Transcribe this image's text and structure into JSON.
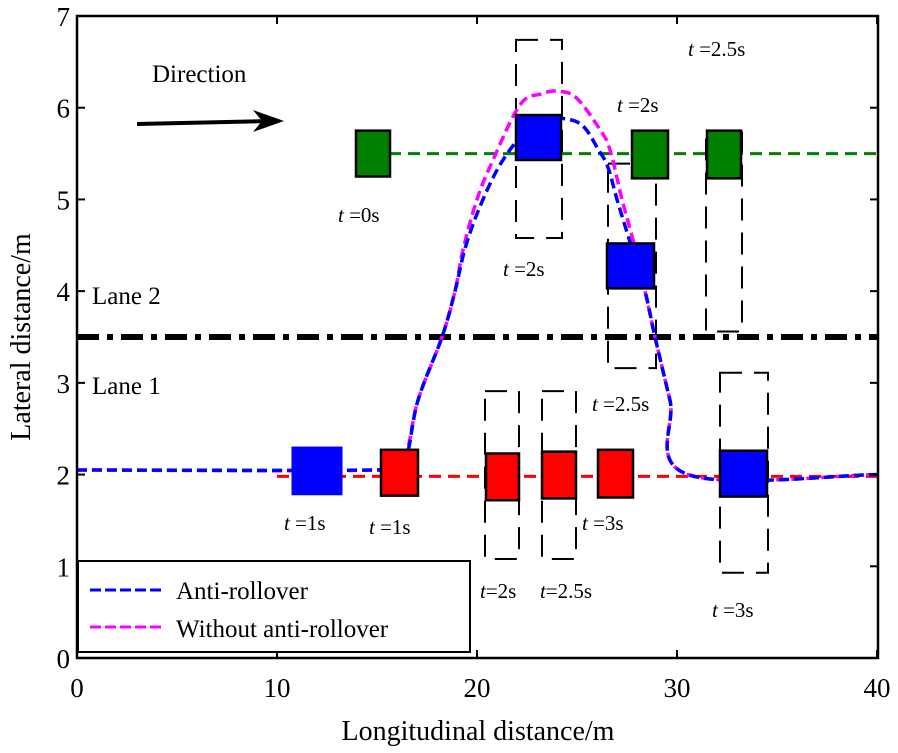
{
  "chart_data": {
    "type": "line",
    "title": "",
    "xlabel": "Longitudinal distance/m",
    "ylabel": "Lateral distance/m",
    "xlim": [
      0,
      40
    ],
    "ylim": [
      0,
      7
    ],
    "xticks": [
      "0",
      "10",
      "20",
      "30",
      "40"
    ],
    "yticks": [
      "0",
      "1",
      "2",
      "3",
      "4",
      "5",
      "6",
      "7"
    ],
    "grid": false,
    "legend": {
      "placement": "bottom-left",
      "entries": [
        "Anti-rollover",
        "Without anti-rollover"
      ]
    },
    "colors": {
      "anti": "#0000ff",
      "without": "#ff00ff",
      "green_vehicle": "#008000",
      "red_vehicle": "#ff0000",
      "lane": "#000000"
    },
    "series": [
      {
        "name": "Anti-rollover",
        "color": "#0000ff",
        "x": [
          0,
          14.9,
          16.3,
          17.05,
          18.25,
          18.9,
          19.45,
          20.3,
          21.3,
          22.5,
          23.5,
          24.4,
          25.3,
          26.05,
          26.55,
          27.0,
          27.7,
          28.4,
          28.9,
          29.65,
          30.55,
          40
        ],
        "y": [
          2.05,
          2.05,
          2.1,
          2.81,
          3.5,
          4.0,
          4.5,
          5.0,
          5.43,
          5.75,
          5.86,
          5.88,
          5.8,
          5.55,
          5.35,
          5.0,
          4.5,
          4.0,
          3.5,
          2.81,
          2.0,
          2.0
        ]
      },
      {
        "name": "Without anti-rollover",
        "color": "#ff00ff",
        "x": [
          0,
          14.9,
          16.3,
          17.05,
          18.25,
          18.9,
          19.3,
          20.0,
          20.8,
          22.15,
          23.2,
          24.1,
          25.0,
          26.15,
          26.65,
          27.25,
          27.8,
          28.4,
          28.9,
          29.65,
          30.55,
          40
        ],
        "y": [
          2.05,
          2.05,
          2.15,
          2.81,
          3.5,
          4.0,
          4.45,
          5.0,
          5.43,
          6.03,
          6.15,
          6.18,
          6.1,
          5.76,
          5.54,
          5.0,
          4.56,
          4.0,
          3.5,
          2.81,
          2.0,
          2.0
        ]
      }
    ],
    "reference_lines": [
      {
        "name": "lane-divider",
        "y": 3.5,
        "style": "dash-dot",
        "color": "#000000"
      },
      {
        "name": "green-vehicle-path",
        "y": 5.5,
        "x_from": 15.6,
        "x_to": 40,
        "style": "dashed",
        "color": "#008000"
      },
      {
        "name": "red-vehicle-path",
        "y": 1.98,
        "x_from": 10,
        "x_to": 40,
        "style": "dashed",
        "color": "#ff0000"
      }
    ],
    "vehicles": [
      {
        "name": "green-t0",
        "color": "#008000",
        "x": [
          13.95,
          15.65
        ],
        "y": [
          5.25,
          5.75
        ],
        "label": "t =0s",
        "outline": null
      },
      {
        "name": "green-t2",
        "color": "#008000",
        "x": [
          27.75,
          29.55
        ],
        "y": [
          5.23,
          5.75
        ],
        "label": "t =2s",
        "outline": null
      },
      {
        "name": "green-t2.5",
        "color": "#008000",
        "x": [
          31.5,
          33.2
        ],
        "y": [
          5.23,
          5.75
        ],
        "label": "t =2.5s",
        "outline": {
          "x": [
            31.45,
            33.25
          ],
          "y": [
            3.56,
            5.73
          ]
        }
      },
      {
        "name": "blue-t1",
        "color": "#0000ff",
        "x": [
          10.75,
          13.25
        ],
        "y": [
          1.78,
          2.3
        ],
        "label": "t =1s",
        "outline": null,
        "border": "#0000ff"
      },
      {
        "name": "blue-t2",
        "color": "#0000ff",
        "x": [
          21.95,
          24.2
        ],
        "y": [
          5.43,
          5.92
        ],
        "label": "t =2s",
        "outline": {
          "x": [
            21.95,
            24.25
          ],
          "y": [
            4.58,
            6.74
          ]
        }
      },
      {
        "name": "blue-t2.5",
        "color": "#0000ff",
        "x": [
          26.5,
          28.85
        ],
        "y": [
          4.03,
          4.52
        ],
        "label": "t =2.5s",
        "outline": {
          "x": [
            26.55,
            28.95
          ],
          "y": [
            3.16,
            5.39
          ]
        }
      },
      {
        "name": "blue-t3",
        "color": "#0000ff",
        "x": [
          32.15,
          34.5
        ],
        "y": [
          1.76,
          2.26
        ],
        "label": "t =3s",
        "outline": {
          "x": [
            32.15,
            34.55
          ],
          "y": [
            0.93,
            3.11
          ]
        }
      },
      {
        "name": "red-t1",
        "color": "#ff0000",
        "x": [
          15.2,
          17.05
        ],
        "y": [
          1.77,
          2.27
        ],
        "label": "t =1s",
        "outline": null
      },
      {
        "name": "red-t2",
        "color": "#ff0000",
        "x": [
          20.45,
          22.1
        ],
        "y": [
          1.72,
          2.23
        ],
        "label": "t=2s",
        "outline": {
          "x": [
            20.4,
            22.1
          ],
          "y": [
            1.08,
            2.91
          ]
        }
      },
      {
        "name": "red-t2.5",
        "color": "#ff0000",
        "x": [
          23.25,
          24.95
        ],
        "y": [
          1.74,
          2.25
        ],
        "label": "t =2.5s",
        "outline": {
          "x": [
            23.25,
            24.95
          ],
          "y": [
            1.08,
            2.91
          ]
        }
      },
      {
        "name": "red-t3",
        "color": "#ff0000",
        "x": [
          26.05,
          27.8
        ],
        "y": [
          1.75,
          2.27
        ],
        "label": "t =3s",
        "outline": null
      }
    ],
    "annotations": {
      "direction": "Direction",
      "lane2": "Lane 2",
      "lane1": "Lane 1"
    }
  }
}
